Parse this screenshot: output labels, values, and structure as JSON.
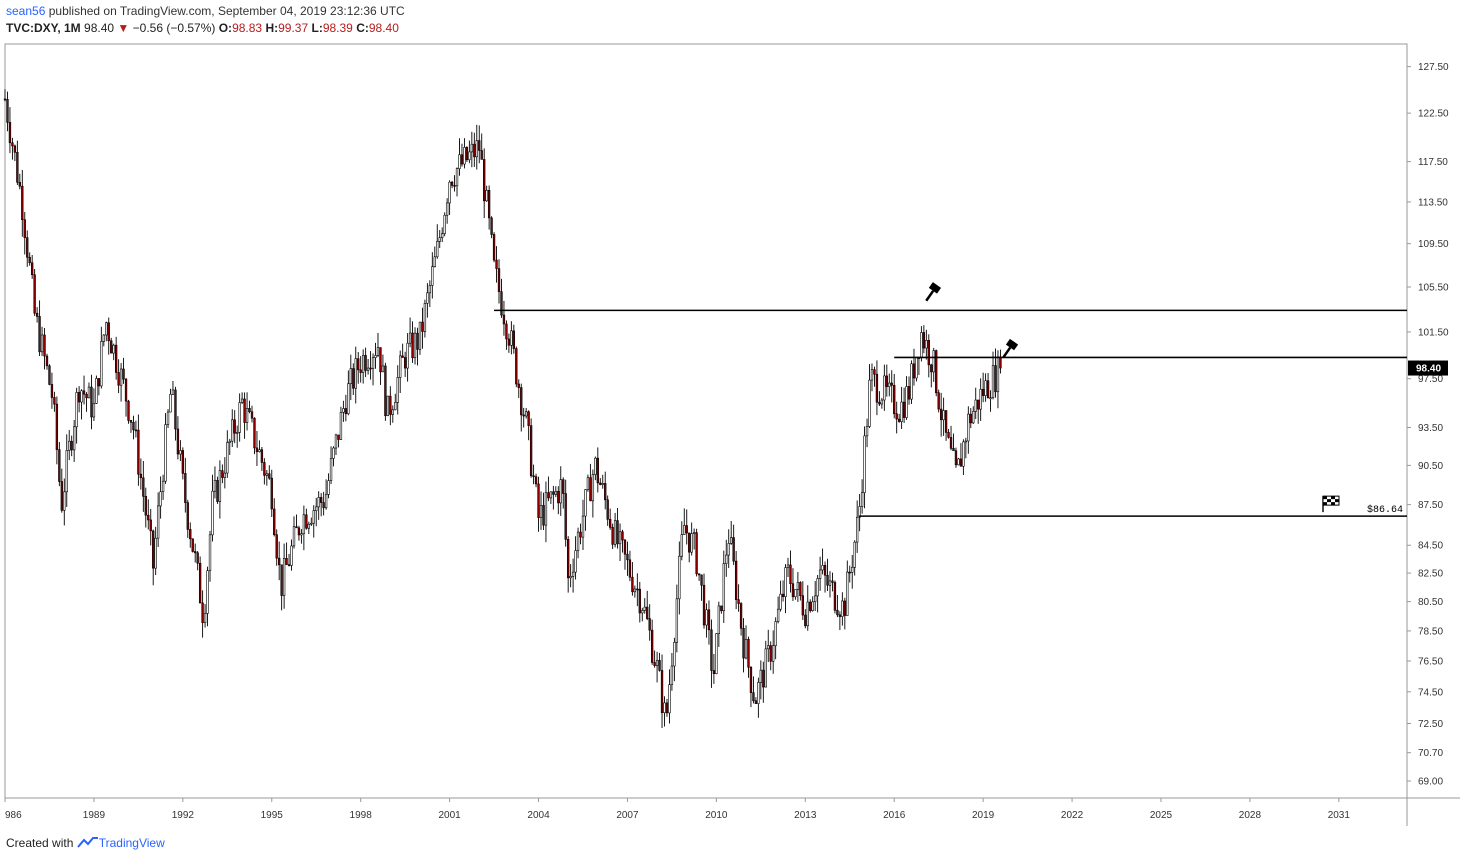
{
  "header": {
    "author": "sean56",
    "published_text": "published on TradingView.com, September 04, 2019 23:12:36 UTC",
    "symbol": "TVC:DXY, 1M",
    "last": "98.40",
    "change_icon": "down-triangle-icon",
    "change": "−0.56 (−0.57%)",
    "open_label": "O:",
    "open": "98.83",
    "high_label": "H:",
    "high": "99.37",
    "low_label": "L:",
    "low": "98.39",
    "close_label": "C:",
    "close": "98.40"
  },
  "footer": {
    "created_with": "Created with",
    "brand": "TradingView",
    "logo_icon": "tradingview-logo-icon"
  },
  "colors": {
    "up": "#000000",
    "down": "#8b0000",
    "price_label_bg": "#000000",
    "price_label_text": "#ffffff",
    "accent_text": "#b71c1c",
    "link": "#2962ff"
  },
  "chart_data": {
    "type": "candlestick",
    "interval": "1M",
    "symbol": "TVC:DXY",
    "y_ticks": [
      "127.50",
      "122.50",
      "117.50",
      "113.50",
      "109.50",
      "105.50",
      "101.50",
      "97.50",
      "93.50",
      "90.50",
      "87.50",
      "84.50",
      "82.50",
      "80.50",
      "78.50",
      "76.50",
      "74.50",
      "72.50",
      "70.70",
      "69.00"
    ],
    "x_ticks": [
      "986",
      "1989",
      "1992",
      "1995",
      "1998",
      "2001",
      "2004",
      "2007",
      "2010",
      "2013",
      "2016",
      "2019",
      "2022",
      "2025",
      "2028",
      "2031"
    ],
    "y_scale": "log",
    "ylim": [
      68.0,
      130.0
    ],
    "xlim": [
      1986.0,
      2033.3
    ],
    "last_price": "98.40",
    "key_points": [
      {
        "t": 1986.0,
        "v": 124.0
      },
      {
        "t": 1986.6,
        "v": 113.0
      },
      {
        "t": 1987.0,
        "v": 103.0
      },
      {
        "t": 1987.6,
        "v": 96.0
      },
      {
        "t": 1987.9,
        "v": 87.5
      },
      {
        "t": 1988.5,
        "v": 97.0
      },
      {
        "t": 1989.0,
        "v": 95.0
      },
      {
        "t": 1989.4,
        "v": 102.5
      },
      {
        "t": 1990.3,
        "v": 94.0
      },
      {
        "t": 1991.0,
        "v": 83.0
      },
      {
        "t": 1991.6,
        "v": 96.5
      },
      {
        "t": 1992.0,
        "v": 89.0
      },
      {
        "t": 1992.7,
        "v": 79.5
      },
      {
        "t": 1993.0,
        "v": 87.5
      },
      {
        "t": 1994.0,
        "v": 95.5
      },
      {
        "t": 1995.0,
        "v": 88.5
      },
      {
        "t": 1995.3,
        "v": 81.5
      },
      {
        "t": 1996.0,
        "v": 86.5
      },
      {
        "t": 1996.8,
        "v": 88.0
      },
      {
        "t": 1997.5,
        "v": 96.0
      },
      {
        "t": 1998.0,
        "v": 99.0
      },
      {
        "t": 1998.6,
        "v": 100.5
      },
      {
        "t": 1998.9,
        "v": 94.5
      },
      {
        "t": 1999.5,
        "v": 99.5
      },
      {
        "t": 2000.0,
        "v": 101.0
      },
      {
        "t": 2000.6,
        "v": 109.0
      },
      {
        "t": 2001.0,
        "v": 116.0
      },
      {
        "t": 2001.5,
        "v": 117.5
      },
      {
        "t": 2002.0,
        "v": 119.0
      },
      {
        "t": 2002.5,
        "v": 107.0
      },
      {
        "t": 2003.0,
        "v": 101.5
      },
      {
        "t": 2003.6,
        "v": 93.5
      },
      {
        "t": 2004.0,
        "v": 86.5
      },
      {
        "t": 2004.8,
        "v": 89.0
      },
      {
        "t": 2005.0,
        "v": 82.0
      },
      {
        "t": 2005.9,
        "v": 90.5
      },
      {
        "t": 2006.6,
        "v": 85.0
      },
      {
        "t": 2007.5,
        "v": 80.5
      },
      {
        "t": 2008.0,
        "v": 76.0
      },
      {
        "t": 2008.3,
        "v": 72.5
      },
      {
        "t": 2008.9,
        "v": 86.0
      },
      {
        "t": 2009.3,
        "v": 84.0
      },
      {
        "t": 2009.9,
        "v": 75.5
      },
      {
        "t": 2010.4,
        "v": 85.5
      },
      {
        "t": 2010.9,
        "v": 78.0
      },
      {
        "t": 2011.3,
        "v": 74.0
      },
      {
        "t": 2011.8,
        "v": 77.0
      },
      {
        "t": 2012.4,
        "v": 82.5
      },
      {
        "t": 2013.0,
        "v": 80.0
      },
      {
        "t": 2013.5,
        "v": 82.5
      },
      {
        "t": 2014.3,
        "v": 80.0
      },
      {
        "t": 2014.8,
        "v": 86.5
      },
      {
        "t": 2015.2,
        "v": 97.5
      },
      {
        "t": 2015.8,
        "v": 96.0
      },
      {
        "t": 2016.2,
        "v": 95.0
      },
      {
        "t": 2016.5,
        "v": 96.5
      },
      {
        "t": 2016.9,
        "v": 101.5
      },
      {
        "t": 2017.3,
        "v": 99.0
      },
      {
        "t": 2017.7,
        "v": 93.0
      },
      {
        "t": 2018.1,
        "v": 89.5
      },
      {
        "t": 2018.5,
        "v": 94.0
      },
      {
        "t": 2019.0,
        "v": 96.5
      },
      {
        "t": 2019.6,
        "v": 98.4
      }
    ],
    "annotations": [
      {
        "type": "horizontal-line",
        "from_t": 2002.5,
        "value": 103.4
      },
      {
        "type": "horizontal-line",
        "from_t": 2016.0,
        "value": 99.3
      },
      {
        "type": "horizontal-line",
        "from_t": 2014.8,
        "value": 86.64,
        "label": "$86.64",
        "flag_icon": "checkered-flag-icon"
      },
      {
        "type": "icon",
        "name": "gavel-icon",
        "t": 2017.4,
        "value": 105.2
      },
      {
        "type": "icon",
        "name": "gavel-icon",
        "t": 2020.0,
        "value": 100.2
      }
    ]
  }
}
